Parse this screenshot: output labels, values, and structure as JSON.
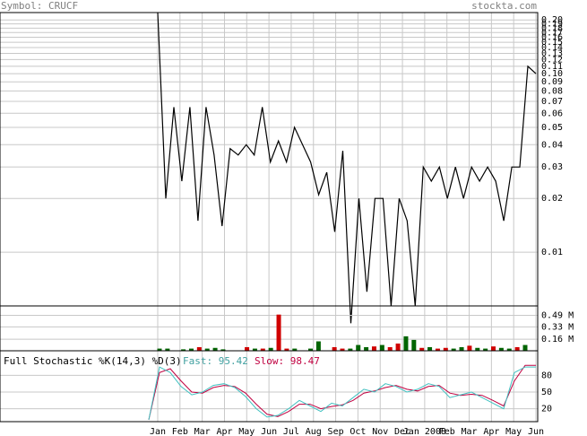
{
  "header": {
    "symbol": "Symbol: CRUCF",
    "site": "stockta.com"
  },
  "colors": {
    "grid": "#c8c8c8",
    "frame": "#000000",
    "header_text": "#808080",
    "up_volume": "#006400",
    "down_volume": "#d00000",
    "fast": "#40c0c0",
    "slow": "#c00040"
  },
  "chart_data": [
    {
      "type": "line",
      "name": "price",
      "scale": "log",
      "ylim": [
        0.005,
        0.22
      ],
      "yticks": [
        0.2,
        0.19,
        0.18,
        0.17,
        0.16,
        0.15,
        0.14,
        0.13,
        0.12,
        0.11,
        0.1,
        0.09,
        0.08,
        0.07,
        0.06,
        0.05,
        0.04,
        0.03,
        0.02,
        0.01
      ],
      "ytick_labels": [
        "0.20",
        "0.19",
        "0.18",
        "0.17",
        "0.16",
        "0.15",
        "0.14",
        "0.13",
        "0.12",
        "0.11",
        "0.10",
        "0.09",
        "0.08",
        "0.07",
        "0.06",
        "0.05",
        "0.04",
        "0.03",
        "0.02",
        "0.01"
      ],
      "x_labels": [
        "Jan",
        "Feb",
        "Mar",
        "Apr",
        "May",
        "Jun",
        "Jul",
        "Aug",
        "Sep",
        "Oct",
        "Nov",
        "Dec",
        "Jan 2008",
        "Feb",
        "Mar",
        "Apr",
        "May",
        "Jun"
      ],
      "values": [
        0.25,
        0.02,
        0.065,
        0.025,
        0.065,
        0.015,
        0.065,
        0.035,
        0.014,
        0.038,
        0.035,
        0.04,
        0.035,
        0.065,
        0.032,
        0.042,
        0.032,
        0.05,
        0.04,
        0.032,
        0.021,
        0.028,
        0.013,
        0.037,
        0.004,
        0.02,
        0.006,
        0.02,
        0.02,
        0.005,
        0.02,
        0.015,
        0.005,
        0.03,
        0.025,
        0.03,
        0.02,
        0.03,
        0.02,
        0.03,
        0.025,
        0.03,
        0.025,
        0.015,
        0.03,
        0.03,
        0.11,
        0.1
      ]
    },
    {
      "type": "bar",
      "name": "volume",
      "ylim": [
        0,
        0.62
      ],
      "ytick_labels": [
        "0.49 M",
        "0.33 M",
        "0.16 M"
      ],
      "yticks": [
        0.49,
        0.33,
        0.16
      ],
      "values": [
        0.03,
        0.03,
        0.0,
        0.02,
        0.03,
        0.05,
        0.03,
        0.04,
        0.02,
        0.0,
        0.0,
        0.05,
        0.03,
        0.03,
        0.04,
        0.5,
        0.03,
        0.03,
        0.0,
        0.03,
        0.13,
        0.0,
        0.05,
        0.03,
        0.03,
        0.08,
        0.05,
        0.06,
        0.08,
        0.05,
        0.1,
        0.2,
        0.15,
        0.04,
        0.05,
        0.03,
        0.04,
        0.03,
        0.05,
        0.07,
        0.04,
        0.03,
        0.06,
        0.04,
        0.03,
        0.05,
        0.08
      ],
      "up": [
        true,
        true,
        true,
        true,
        true,
        false,
        true,
        true,
        true,
        true,
        true,
        false,
        true,
        false,
        true,
        false,
        false,
        true,
        true,
        true,
        true,
        true,
        false,
        false,
        true,
        true,
        true,
        false,
        true,
        false,
        false,
        true,
        true,
        false,
        true,
        false,
        false,
        true,
        true,
        false,
        true,
        true,
        false,
        true,
        true,
        false,
        true
      ]
    },
    {
      "type": "line",
      "name": "stochastic",
      "title": "Full Stochastic %K(14,3) %D(3)",
      "fast_label": "Fast: 95.42",
      "slow_label": "Slow: 98.47",
      "ylim": [
        0,
        100
      ],
      "yticks": [
        80,
        50,
        20
      ],
      "ytick_labels": [
        "80",
        "50",
        "20"
      ],
      "series": [
        {
          "name": "Fast",
          "values": [
            0,
            95,
            85,
            60,
            45,
            50,
            62,
            65,
            58,
            42,
            20,
            5,
            8,
            20,
            35,
            25,
            15,
            30,
            25,
            40,
            55,
            50,
            65,
            60,
            50,
            55,
            65,
            60,
            40,
            45,
            50,
            40,
            30,
            20,
            85,
            95,
            95
          ]
        },
        {
          "name": "Slow",
          "values": [
            0,
            85,
            92,
            70,
            50,
            48,
            58,
            62,
            60,
            48,
            28,
            10,
            6,
            15,
            28,
            28,
            20,
            24,
            27,
            35,
            48,
            52,
            58,
            62,
            55,
            52,
            60,
            62,
            48,
            44,
            46,
            44,
            35,
            25,
            70,
            98,
            98
          ]
        }
      ]
    }
  ]
}
